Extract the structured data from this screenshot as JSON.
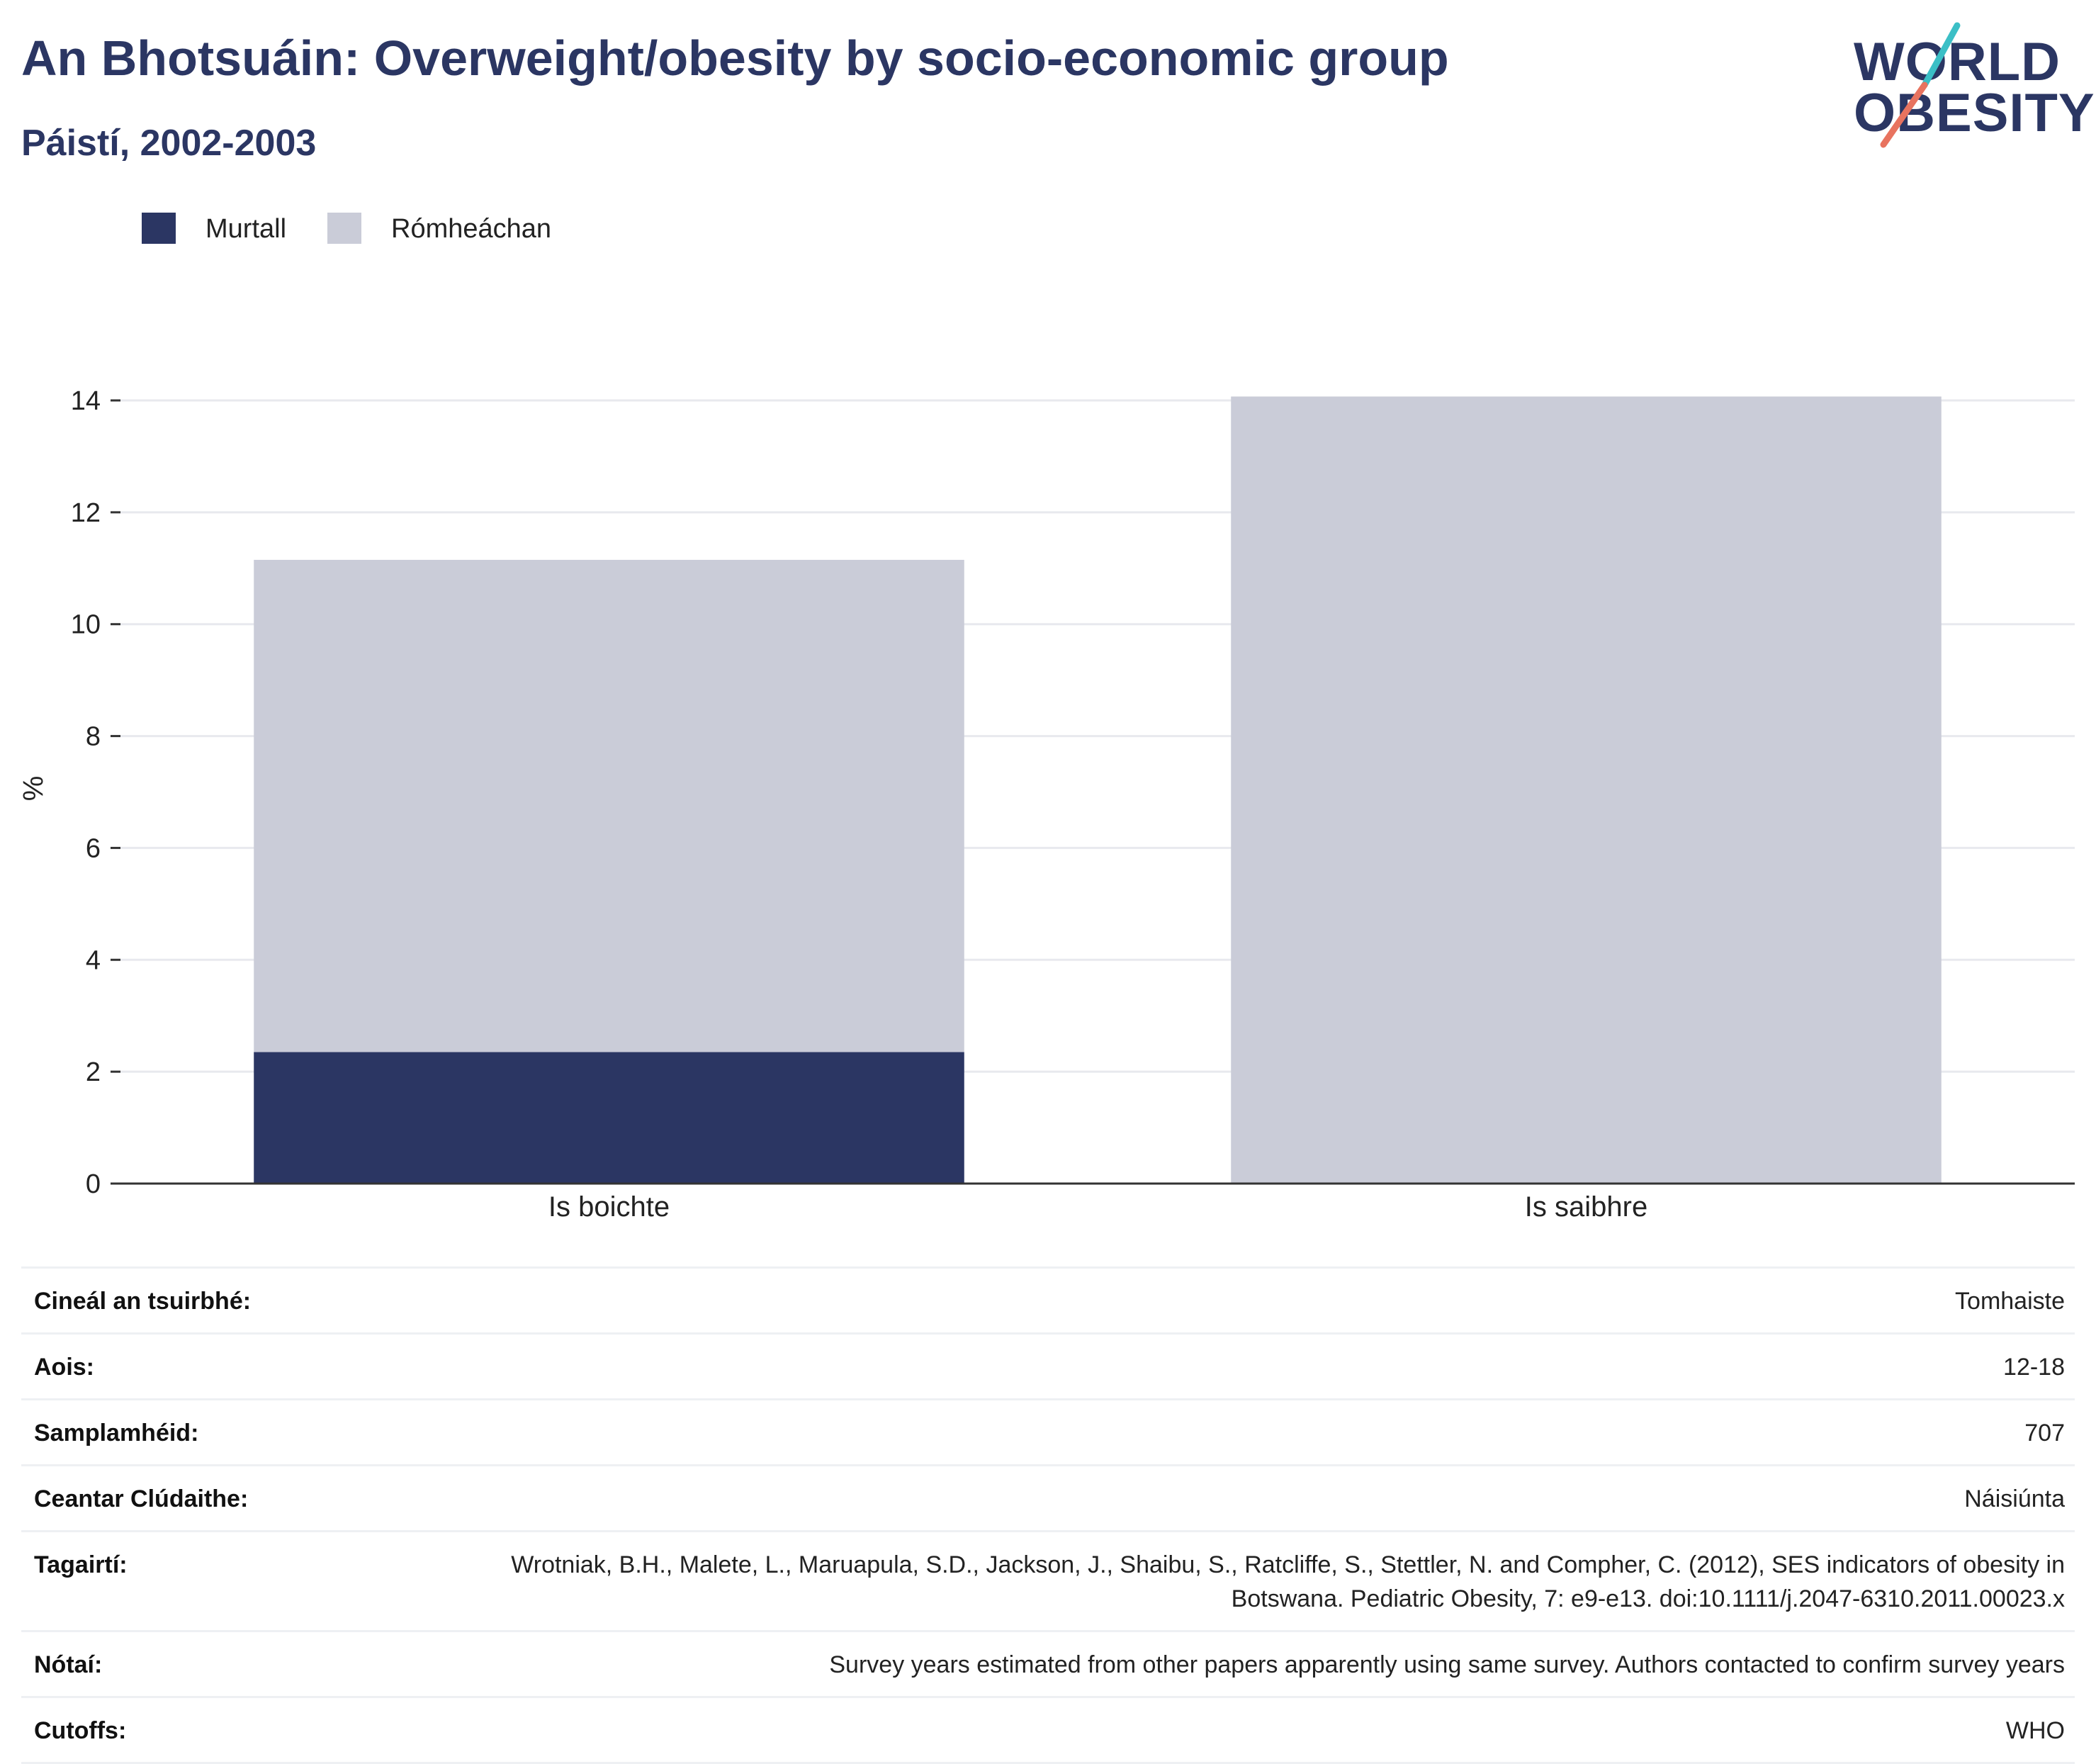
{
  "header": {
    "title": "An Bhotsuáin: Overweight/obesity by socio-economic group",
    "subtitle": "Páistí, 2002-2003"
  },
  "logo": {
    "line1": "WORLD",
    "line2": "OBESITY",
    "slash_top_color": "#3bbfc6",
    "slash_bottom_color": "#e8735f"
  },
  "colors": {
    "murtall": "#2b3663",
    "romheachan": "#caccd8",
    "grid": "#e8e9ee",
    "axis": "#333333"
  },
  "chart_data": {
    "type": "bar",
    "stacked": true,
    "title": "An Bhotsuáin: Overweight/obesity by socio-economic group",
    "subtitle": "Páistí, 2002-2003",
    "categories": [
      "Is boichte",
      "Is saibhre"
    ],
    "series": [
      {
        "name": "Murtall",
        "values": [
          2.35,
          0
        ]
      },
      {
        "name": "Rómheáchan",
        "values": [
          8.8,
          14.07
        ]
      }
    ],
    "ylabel": "%",
    "xlabel": "",
    "ylim": [
      0,
      14
    ],
    "yticks": [
      0,
      2,
      4,
      6,
      8,
      10,
      12,
      14
    ],
    "grid": true,
    "legend_position": "top-left"
  },
  "details": [
    {
      "label": "Cineál an tsuirbhé:",
      "value": "Tomhaiste"
    },
    {
      "label": "Aois:",
      "value": "12-18"
    },
    {
      "label": "Samplamhéid:",
      "value": "707"
    },
    {
      "label": "Ceantar Clúdaithe:",
      "value": "Náisiúnta"
    },
    {
      "label": "Tagairtí:",
      "value": "Wrotniak, B.H., Malete, L., Maruapula, S.D., Jackson, J., Shaibu, S., Ratcliffe, S., Stettler, N. and Compher, C. (2012), SES indicators of obesity in Botswana. Pediatric Obesity, 7: e9-e13. doi:10.1111/j.2047-6310.2011.00023.x"
    },
    {
      "label": "Nótaí:",
      "value": "Survey years estimated from other papers apparently using same survey. Authors contacted to confirm survey years"
    },
    {
      "label": "Cutoffs:",
      "value": "WHO"
    }
  ]
}
